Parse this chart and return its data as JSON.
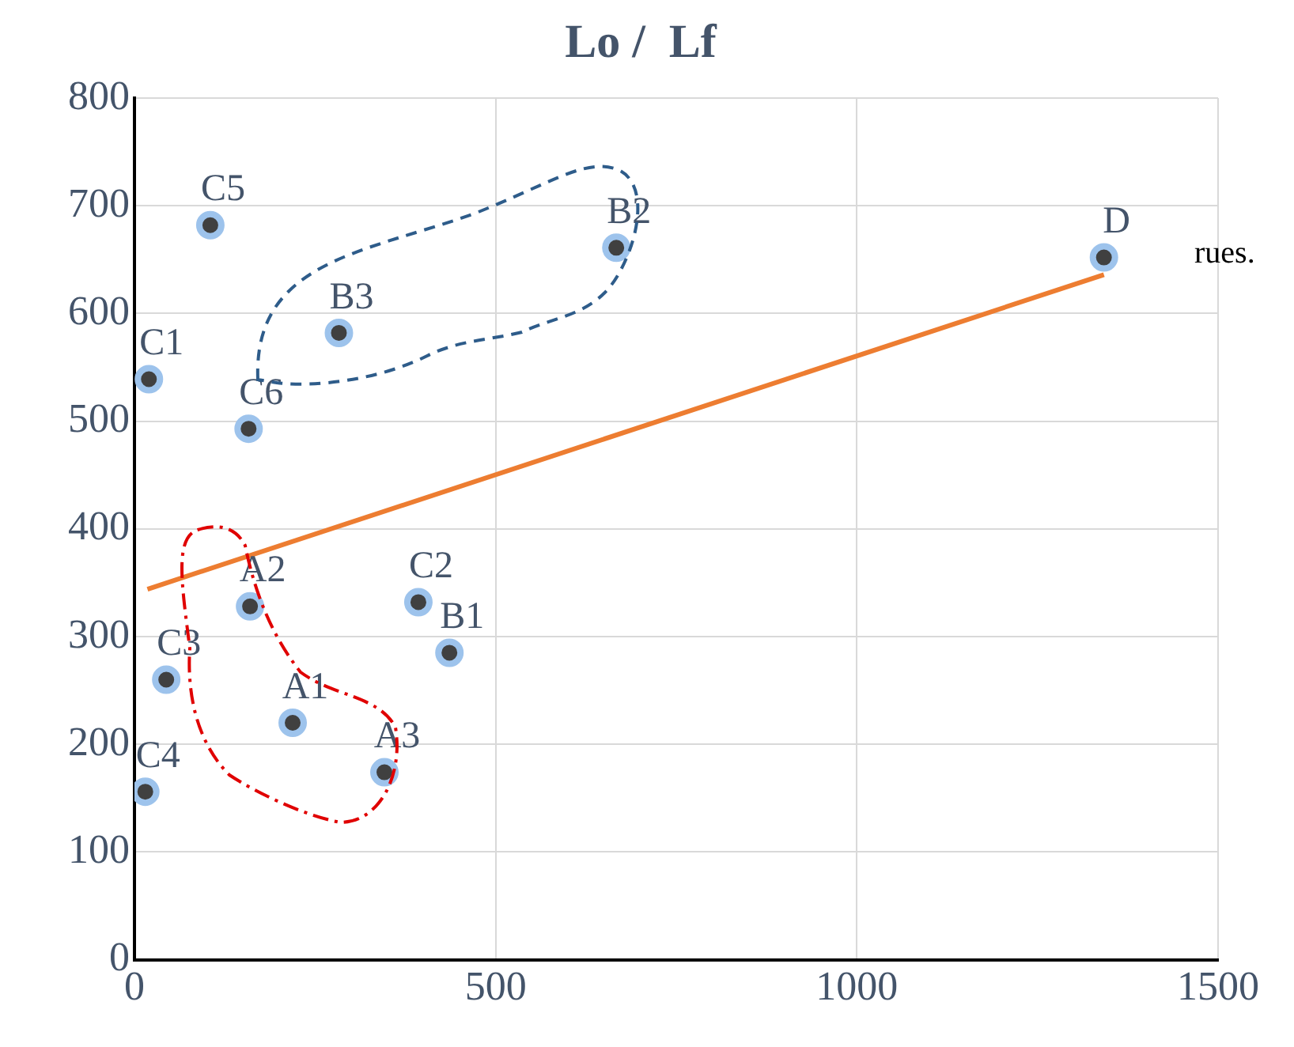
{
  "chart_data": {
    "type": "scatter",
    "title": "Lo /  Lf",
    "series": [
      {
        "color": "#404040",
        "marker": "circle",
        "x": [
          20,
          105,
          283,
          667,
          1342,
          158,
          160,
          393,
          436,
          44,
          219,
          346,
          15
        ],
        "values": [
          539,
          682,
          582,
          661,
          652,
          493,
          328,
          332,
          285,
          260,
          220,
          174,
          156
        ]
      },
      {
        "type": "line",
        "color": "#ed7d31",
        "x": [
          18,
          1342
        ],
        "values": [
          344,
          636
        ]
      }
    ],
    "xlim": [
      0,
      1500
    ],
    "xticks": [
      0,
      500,
      1000,
      1500
    ],
    "ylim": [
      0,
      800
    ],
    "yticks": [
      0,
      100,
      200,
      300,
      400,
      500,
      600,
      700,
      800
    ],
    "grid": true,
    "legend": false,
    "annotations": [
      {
        "text": "C1",
        "x": 20,
        "y": 539
      },
      {
        "text": "C5",
        "x": 105,
        "y": 682
      },
      {
        "text": "B3",
        "x": 283,
        "y": 582
      },
      {
        "text": "B2",
        "x": 667,
        "y": 661
      },
      {
        "text": "D",
        "x": 1342,
        "y": 652
      },
      {
        "text": "C6",
        "x": 158,
        "y": 493
      },
      {
        "text": "A2",
        "x": 160,
        "y": 328
      },
      {
        "text": "C2",
        "x": 393,
        "y": 332
      },
      {
        "text": "B1",
        "x": 436,
        "y": 285
      },
      {
        "text": "C3",
        "x": 44,
        "y": 260
      },
      {
        "text": "A1",
        "x": 219,
        "y": 220
      },
      {
        "text": "A3",
        "x": 346,
        "y": 174
      },
      {
        "text": "C4",
        "x": 15,
        "y": 156
      },
      "rues."
    ]
  }
}
